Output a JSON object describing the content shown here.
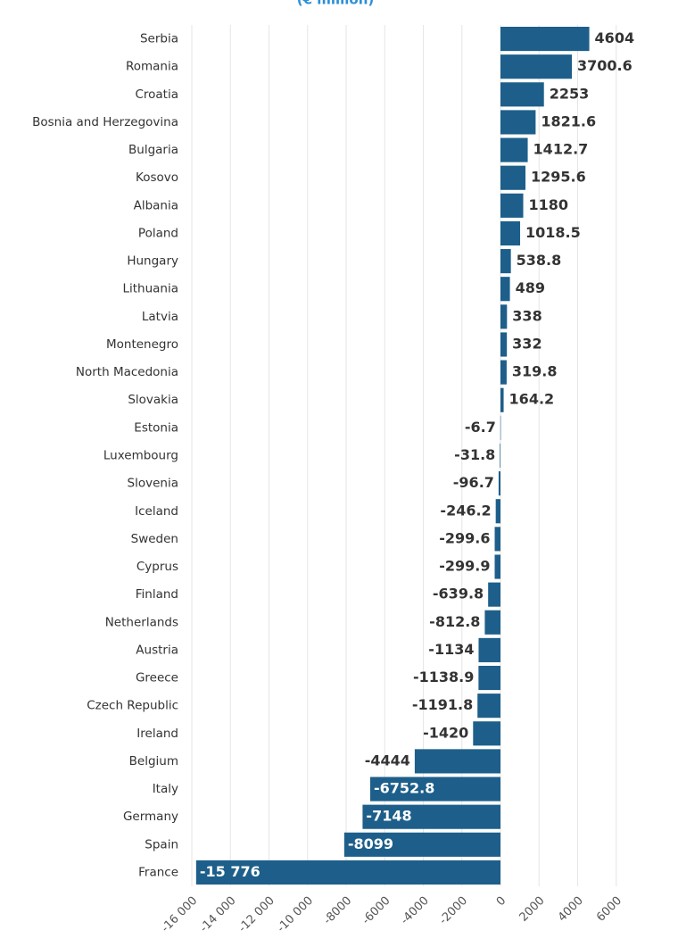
{
  "chart_data": {
    "type": "hbar",
    "subtitle": "(€ million)",
    "categories": [
      "Serbia",
      "Romania",
      "Croatia",
      "Bosnia and Herzegovina",
      "Bulgaria",
      "Kosovo",
      "Albania",
      "Poland",
      "Hungary",
      "Lithuania",
      "Latvia",
      "Montenegro",
      "North Macedonia",
      "Slovakia",
      "Estonia",
      "Luxembourg",
      "Slovenia",
      "Iceland",
      "Sweden",
      "Cyprus",
      "Finland",
      "Netherlands",
      "Austria",
      "Greece",
      "Czech Republic",
      "Ireland",
      "Belgium",
      "Italy",
      "Germany",
      "Spain",
      "France"
    ],
    "values": [
      4604,
      3700.6,
      2253,
      1821.6,
      1412.7,
      1295.6,
      1180,
      1018.5,
      538.8,
      489,
      338,
      332,
      319.8,
      164.2,
      -6.7,
      -31.8,
      -96.7,
      -246.2,
      -299.6,
      -299.9,
      -639.8,
      -812.8,
      -1134,
      -1138.9,
      -1191.8,
      -1420,
      -4444,
      -6752.8,
      -7148,
      -8099,
      -15776
    ],
    "value_labels": [
      "4604",
      "3700.6",
      "2253",
      "1821.6",
      "1412.7",
      "1295.6",
      "1180",
      "1018.5",
      "538.8",
      "489",
      "338",
      "332",
      "319.8",
      "164.2",
      "-6.7",
      "-31.8",
      "-96.7",
      "-246.2",
      "-299.6",
      "-299.9",
      "-639.8",
      "-812.8",
      "-1134",
      "-1138.9",
      "-1191.8",
      "-1420",
      "-4444",
      "-6752.8",
      "-7148",
      "-8099",
      "-15 776"
    ],
    "color": "#1d5f8a",
    "xlim": [
      -16000,
      7000
    ],
    "xticks": [
      {
        "value": -16000,
        "label": "-16 000"
      },
      {
        "value": -14000,
        "label": "-14 000"
      },
      {
        "value": -12000,
        "label": "-12 000"
      },
      {
        "value": -10000,
        "label": "-10 000"
      },
      -8000,
      -6000,
      -4000,
      -2000,
      0,
      2000,
      4000,
      6000
    ],
    "grid": true
  }
}
